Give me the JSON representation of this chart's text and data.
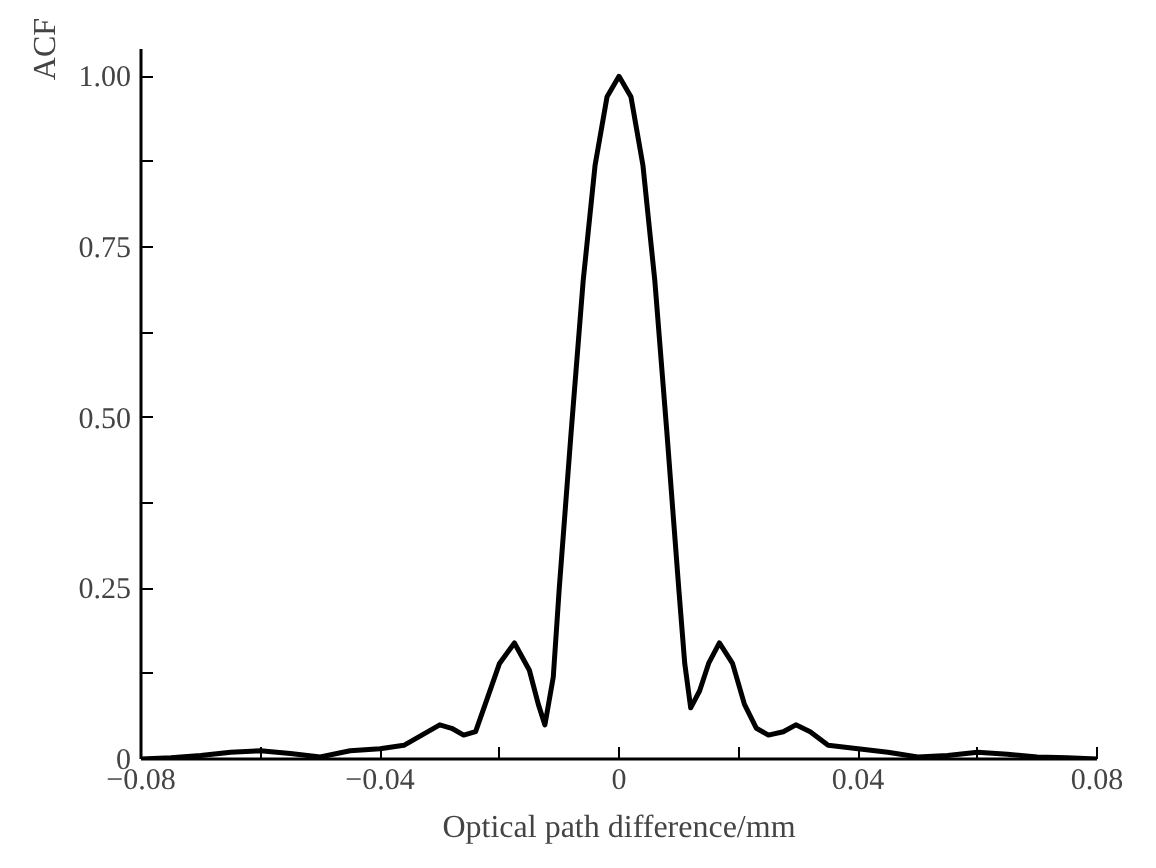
{
  "chart_data": {
    "type": "line",
    "xlabel": "Optical path difference/mm",
    "ylabel": "ACF",
    "x": [
      -0.08,
      -0.075,
      -0.07,
      -0.065,
      -0.06,
      -0.055,
      -0.05,
      -0.045,
      -0.04,
      -0.036,
      -0.033,
      -0.03,
      -0.028,
      -0.026,
      -0.024,
      -0.022,
      -0.02,
      -0.0175,
      -0.015,
      -0.0135,
      -0.0124,
      -0.011,
      -0.01,
      -0.008,
      -0.006,
      -0.004,
      -0.002,
      0,
      0.002,
      0.004,
      0.006,
      0.008,
      0.01,
      0.011,
      0.012,
      0.0135,
      0.015,
      0.0168,
      0.019,
      0.021,
      0.023,
      0.025,
      0.0275,
      0.0296,
      0.032,
      0.035,
      0.04,
      0.045,
      0.05,
      0.055,
      0.06,
      0.065,
      0.07,
      0.075,
      0.08
    ],
    "series": [
      {
        "color": "#000000",
        "values": [
          0,
          0.002,
          0.005,
          0.01,
          0.012,
          0.008,
          0.003,
          0.012,
          0.015,
          0.02,
          0.035,
          0.05,
          0.045,
          0.035,
          0.04,
          0.09,
          0.14,
          0.17,
          0.13,
          0.08,
          0.05,
          0.12,
          0.25,
          0.48,
          0.7,
          0.87,
          0.97,
          1.0,
          0.97,
          0.87,
          0.7,
          0.48,
          0.25,
          0.14,
          0.075,
          0.1,
          0.14,
          0.17,
          0.14,
          0.08,
          0.045,
          0.035,
          0.04,
          0.05,
          0.04,
          0.02,
          0.015,
          0.01,
          0.003,
          0.005,
          0.01,
          0.007,
          0.003,
          0.002,
          0
        ]
      }
    ],
    "xlim": [
      -0.08,
      0.08
    ],
    "ylim": [
      0,
      1.04
    ],
    "xticks": [
      {
        "value": -0.08,
        "label": "−0.08"
      },
      {
        "value": -0.06,
        "label": null
      },
      {
        "value": -0.04,
        "label": "−0.04"
      },
      {
        "value": -0.02,
        "label": null
      },
      0,
      {
        "value": 0.02,
        "label": null
      },
      0.04,
      {
        "value": 0.06,
        "label": null
      },
      0.08
    ],
    "yticks": [
      0,
      {
        "value": 0.125,
        "label": null
      },
      {
        "value": 0.25,
        "label": "0.25"
      },
      {
        "value": 0.375,
        "label": null
      },
      {
        "value": 0.5,
        "label": "0.50"
      },
      {
        "value": 0.625,
        "label": null
      },
      {
        "value": 0.75,
        "label": "0.75"
      },
      {
        "value": 0.875,
        "label": null
      },
      {
        "value": 1.0,
        "label": "1.00"
      }
    ],
    "grid": false,
    "marker": "none",
    "line_style": "solid"
  }
}
